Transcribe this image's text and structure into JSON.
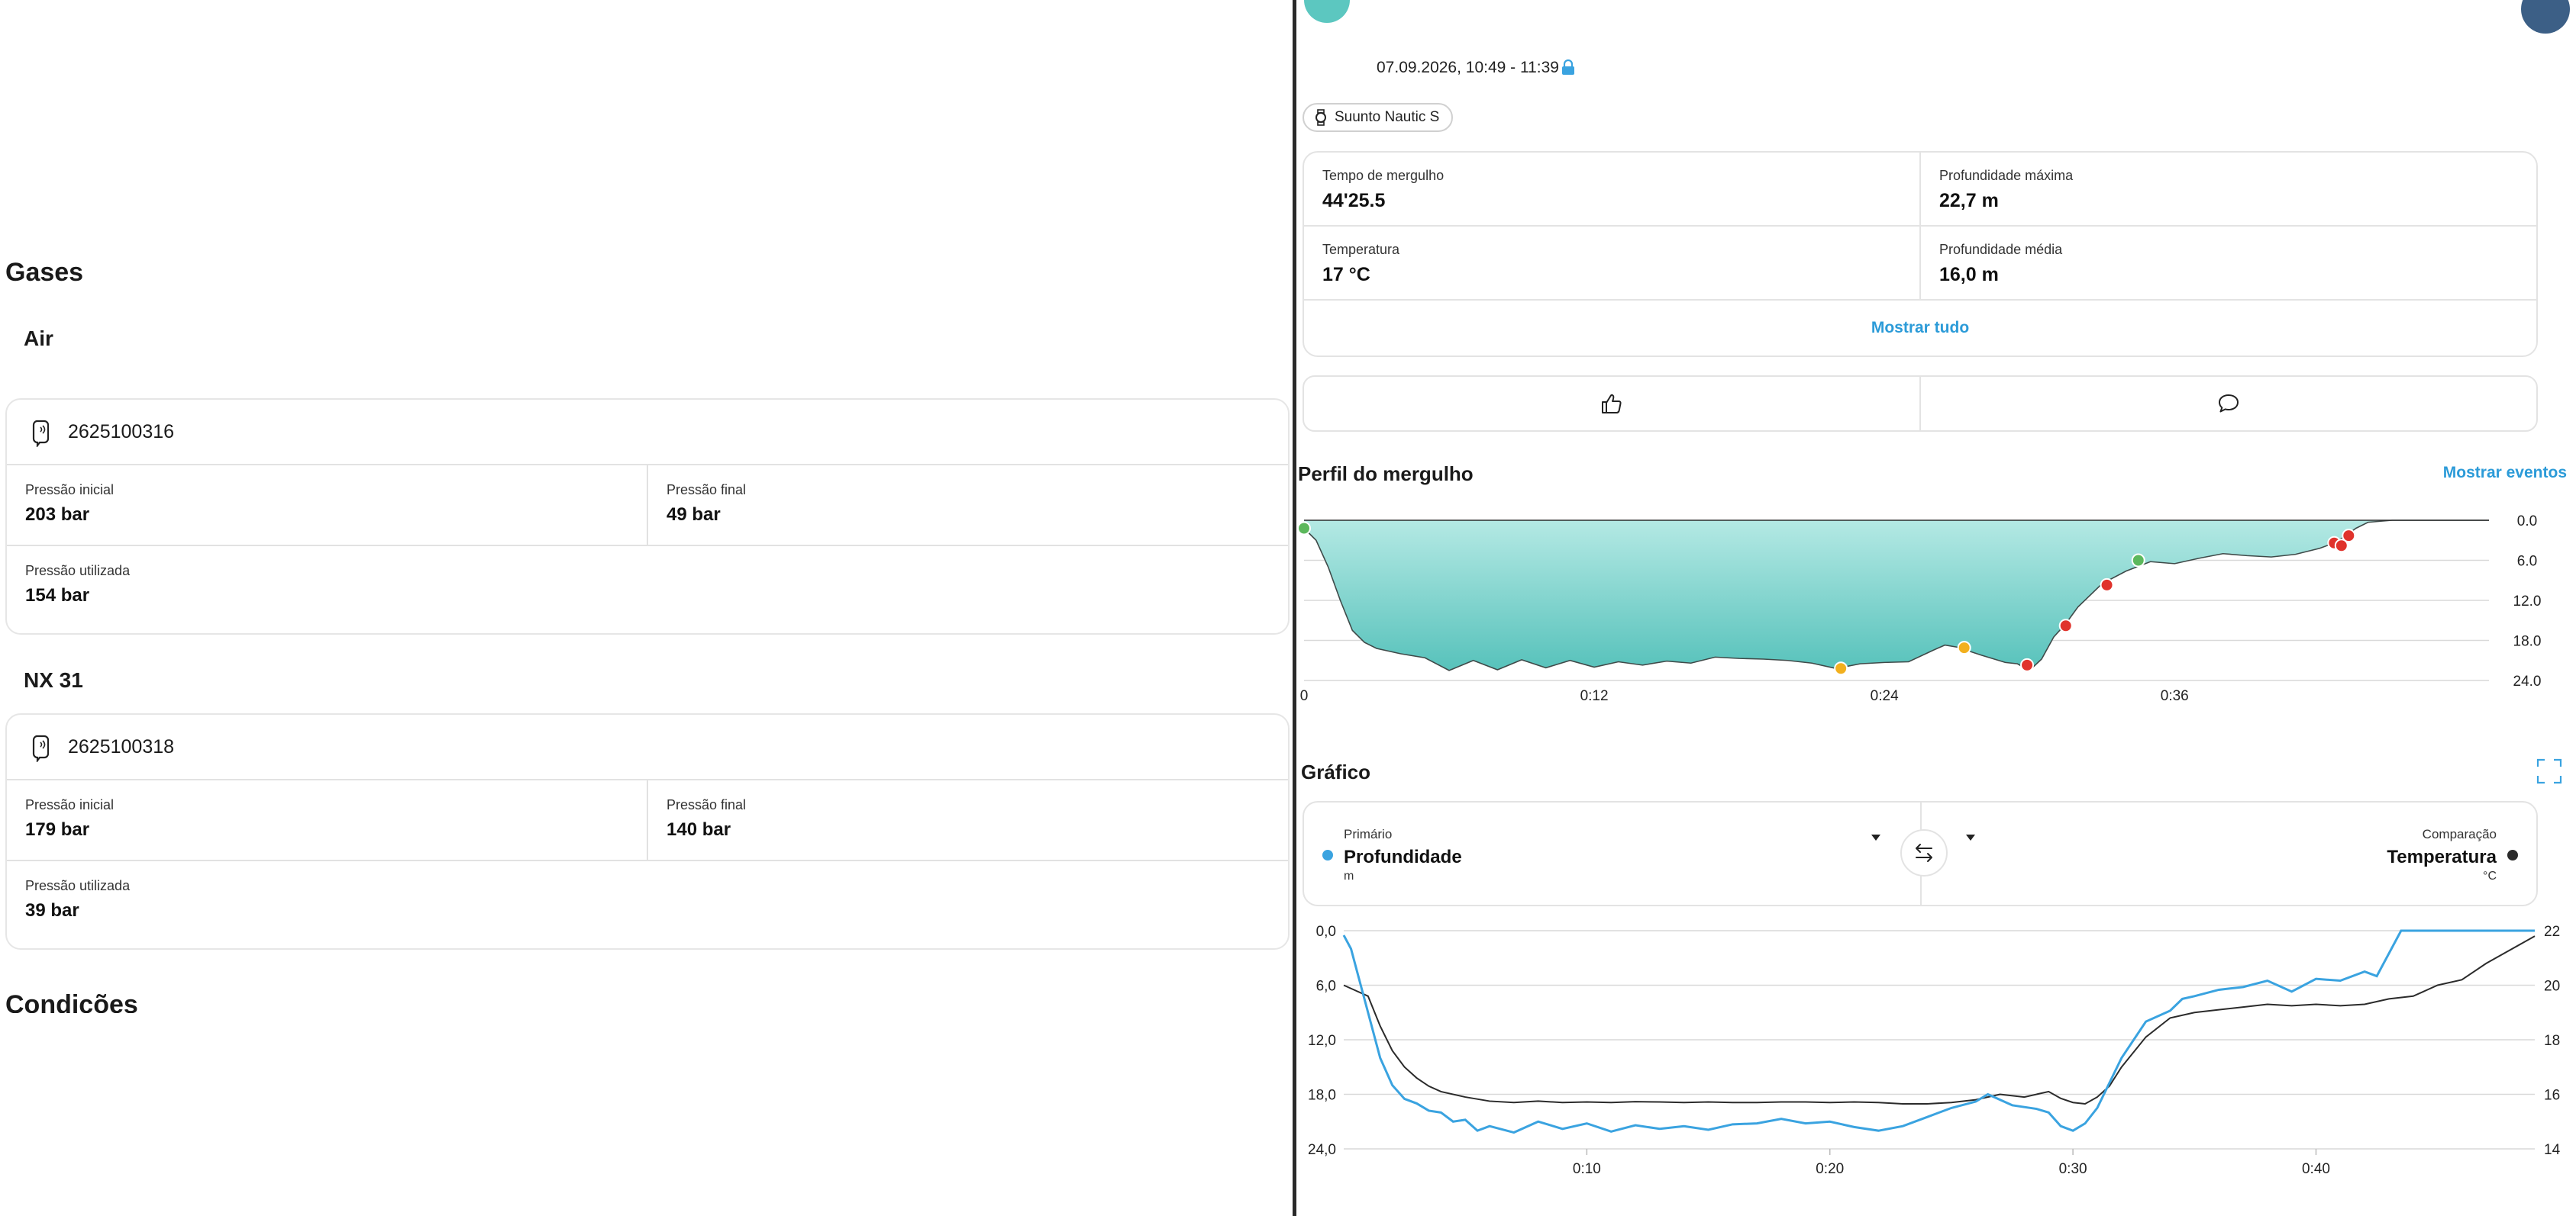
{
  "gases": {
    "title": "Gases",
    "tanks": [
      {
        "gas": "Air",
        "serial": "2625100316",
        "start_label": "Pressão inicial",
        "start_value": "203 bar",
        "end_label": "Pressão final",
        "end_value": "49 bar",
        "used_label": "Pressão utilizada",
        "used_value": "154 bar"
      },
      {
        "gas": "NX 31",
        "serial": "2625100318",
        "start_label": "Pressão inicial",
        "start_value": "179 bar",
        "end_label": "Pressão final",
        "end_value": "140 bar",
        "used_label": "Pressão utilizada",
        "used_value": "39 bar"
      }
    ]
  },
  "conditions": {
    "title": "Condições"
  },
  "dive": {
    "date": "07.09.2026, 10:49 - 11:39",
    "device": "Suunto Nautic S",
    "icons": {
      "lock": "lock-icon",
      "watch": "watch-icon"
    }
  },
  "stats": {
    "items": [
      {
        "label": "Tempo de mergulho",
        "value": "44'25.5"
      },
      {
        "label": "Profundidade máxima",
        "value": "22,7 m"
      },
      {
        "label": "Temperatura",
        "value": "17 °C"
      },
      {
        "label": "Profundidade média",
        "value": "16,0 m"
      }
    ],
    "show_all": "Mostrar tudo"
  },
  "reactions": {
    "like_icon": "thumbs-up-icon",
    "comment_icon": "comment-icon"
  },
  "profile": {
    "title": "Perfil do mergulho",
    "show_events": "Mostrar eventos",
    "y_ticks": [
      "0.0",
      "6.0",
      "12.0",
      "18.0",
      "24.0"
    ],
    "x_ticks": [
      "0",
      "0:12",
      "0:24",
      "0:36"
    ]
  },
  "graph": {
    "title": "Gráfico",
    "primary": {
      "caption": "Primário",
      "name": "Profundidade",
      "unit": "m"
    },
    "compare": {
      "caption": "Comparação",
      "name": "Temperatura",
      "unit": "°C"
    }
  },
  "colors": {
    "accent": "#2c9bd8",
    "depth_line": "#3aa3e0",
    "temp_line": "#2b2b2b",
    "profile_fill_top": "#b4e9e4",
    "profile_fill_bottom": "#57c2bb",
    "event_green": "#5cb85c",
    "event_red": "#e0332c",
    "event_yellow": "#f2b01e"
  },
  "chart_data": [
    {
      "type": "area",
      "title": "Perfil do mergulho",
      "xlabel": "",
      "ylabel": "",
      "x_ticks": [
        "0",
        "0:12",
        "0:24",
        "0:36"
      ],
      "y_ticks": [
        "0.0",
        "6.0",
        "12.0",
        "18.0",
        "24.0"
      ],
      "xlim": [
        0,
        49
      ],
      "ylim": [
        0,
        24
      ],
      "y_inverted": true,
      "grid": true,
      "series": [
        {
          "x": [
            0,
            0.5,
            1,
            1.5,
            2,
            2.5,
            3,
            4,
            5,
            6,
            7,
            8,
            9,
            10,
            11,
            12,
            13,
            14,
            15,
            16,
            17,
            18,
            19,
            20,
            21,
            22,
            23,
            24,
            25,
            26,
            26.5,
            27,
            28,
            29,
            29.5,
            30,
            30.5,
            31,
            31.5,
            32,
            33,
            34,
            35,
            36,
            37,
            38,
            39,
            40,
            41,
            42,
            42.6,
            43,
            43.5,
            44,
            45,
            46,
            47,
            48,
            49
          ],
          "values": [
            1.2,
            3,
            7,
            12,
            16.5,
            18.3,
            19.2,
            20,
            20.6,
            22.5,
            21,
            22.4,
            20.9,
            22.1,
            21,
            22,
            21.2,
            21.7,
            21.1,
            21.4,
            20.5,
            20.7,
            20.8,
            21,
            21.4,
            22.2,
            21.5,
            21.3,
            21.2,
            19.5,
            18.7,
            19,
            20.2,
            21.3,
            21.5,
            22.5,
            20.8,
            17.5,
            15.5,
            13,
            9.5,
            7.6,
            6.2,
            6.5,
            5.7,
            5,
            5.3,
            5.5,
            5.1,
            4.2,
            3.4,
            2.5,
            1.2,
            0.3,
            0,
            0,
            0,
            0,
            0
          ]
        }
      ],
      "events": [
        {
          "x": 0,
          "y": 1.2,
          "color": "green"
        },
        {
          "x": 22.2,
          "y": 22.2,
          "color": "yellow"
        },
        {
          "x": 27.3,
          "y": 19.1,
          "color": "yellow"
        },
        {
          "x": 29.9,
          "y": 21.7,
          "color": "red"
        },
        {
          "x": 31.5,
          "y": 15.8,
          "color": "red"
        },
        {
          "x": 33.2,
          "y": 9.7,
          "color": "red"
        },
        {
          "x": 34.5,
          "y": 6,
          "color": "green"
        },
        {
          "x": 42.6,
          "y": 3.4,
          "color": "red"
        },
        {
          "x": 42.9,
          "y": 3.8,
          "color": "red"
        },
        {
          "x": 43.2,
          "y": 2.3,
          "color": "red"
        }
      ]
    },
    {
      "type": "line",
      "title": "Gráfico",
      "x_ticks": [
        "0:10",
        "0:20",
        "0:30",
        "0:40"
      ],
      "xlim": [
        0,
        49
      ],
      "y_left_ticks": [
        "0,0",
        "6,0",
        "12,0",
        "18,0",
        "24,0"
      ],
      "y_left_lim": [
        0,
        24
      ],
      "y_left_inverted": true,
      "y_right_ticks": [
        "22",
        "20",
        "18",
        "16",
        "14"
      ],
      "y_right_lim": [
        14,
        22
      ],
      "grid": true,
      "series": [
        {
          "name": "Profundidade",
          "unit": "m",
          "axis": "left",
          "x": [
            0,
            0.3,
            0.6,
            1,
            1.5,
            2,
            2.5,
            3,
            3.5,
            4,
            4.5,
            5,
            5.5,
            6,
            7,
            8,
            9,
            10,
            11,
            12,
            13,
            14,
            15,
            16,
            17,
            18,
            19,
            20,
            21,
            22,
            23,
            24,
            25,
            26,
            26.5,
            27,
            27.5,
            28,
            28.5,
            29,
            29.5,
            30,
            30.5,
            31,
            32,
            33,
            34,
            34.5,
            35,
            36,
            37,
            38,
            39,
            40,
            41,
            42,
            42.5,
            43,
            43.5,
            44,
            45,
            46,
            47,
            48,
            49
          ],
          "values": [
            0.5,
            2,
            5,
            9,
            14,
            17,
            18.5,
            19,
            19.8,
            20,
            21,
            20.8,
            22,
            21.5,
            22.2,
            21,
            21.8,
            21.2,
            22.1,
            21.4,
            21.8,
            21.5,
            21.9,
            21.3,
            21.2,
            20.7,
            21.2,
            21,
            21.6,
            22,
            21.5,
            20.5,
            19.5,
            18.8,
            18,
            18.6,
            19.2,
            19.4,
            19.6,
            20,
            21.5,
            22,
            21.2,
            19.5,
            14,
            10,
            8.8,
            7.5,
            7.2,
            6.5,
            6.2,
            5.5,
            6.7,
            5.3,
            5.5,
            4.5,
            5,
            2.5,
            0,
            0,
            0,
            0,
            0,
            0,
            0
          ]
        },
        {
          "name": "Temperatura",
          "unit": "°C",
          "axis": "right",
          "x": [
            0,
            0.5,
            1,
            1.5,
            2,
            2.5,
            3,
            3.5,
            4,
            5,
            6,
            7,
            8,
            9,
            10,
            11,
            12,
            13,
            14,
            15,
            16,
            17,
            18,
            19,
            20,
            21,
            22,
            23,
            24,
            25,
            26,
            27,
            28,
            29,
            29.5,
            30,
            30.5,
            31,
            31.5,
            32,
            33,
            34,
            35,
            36,
            37,
            38,
            39,
            40,
            41,
            42,
            43,
            44,
            45,
            46,
            47,
            48,
            49
          ],
          "values": [
            20,
            19.8,
            19.6,
            18.5,
            17.6,
            17,
            16.6,
            16.3,
            16.1,
            15.9,
            15.75,
            15.7,
            15.75,
            15.7,
            15.72,
            15.7,
            15.73,
            15.72,
            15.7,
            15.72,
            15.7,
            15.7,
            15.72,
            15.72,
            15.7,
            15.72,
            15.7,
            15.65,
            15.65,
            15.7,
            15.8,
            16,
            15.9,
            16.1,
            15.85,
            15.7,
            15.65,
            15.9,
            16.3,
            17,
            18.1,
            18.8,
            19,
            19.1,
            19.2,
            19.3,
            19.25,
            19.3,
            19.25,
            19.3,
            19.5,
            19.6,
            20,
            20.2,
            20.8,
            21.3,
            21.8
          ]
        }
      ]
    }
  ]
}
